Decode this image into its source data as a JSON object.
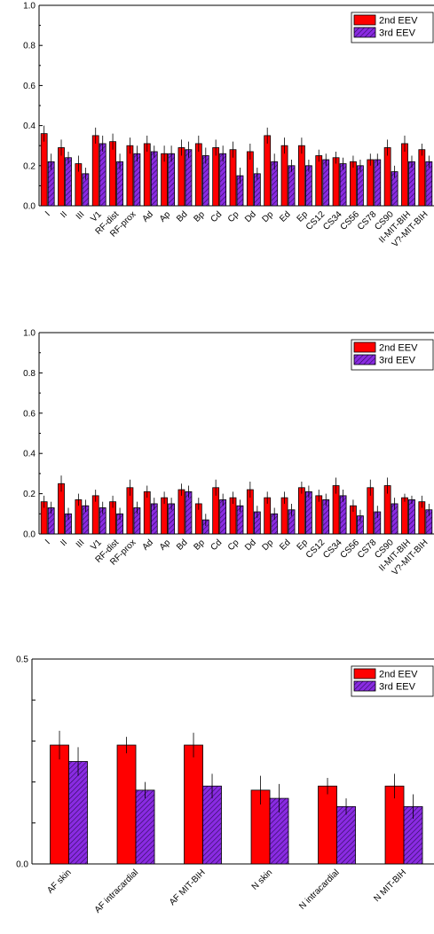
{
  "chart_data": [
    {
      "type": "bar",
      "ylim": [
        0,
        1.0
      ],
      "yticks": [
        "0.0",
        "0.2",
        "0.4",
        "0.6",
        "0.8",
        "1.0"
      ],
      "legend": {
        "position": "top-right"
      },
      "categories": [
        "I",
        "II",
        "III",
        "V1",
        "RF-dist",
        "RF-prox",
        "Ad",
        "Ap",
        "Bd",
        "Bp",
        "Cd",
        "Cp",
        "Dd",
        "Dp",
        "Ed",
        "Ep",
        "CS12",
        "CS34",
        "CS56",
        "CS78",
        "CS90",
        "II-MIT-BIH",
        "V?-MIT-BIH"
      ],
      "series": [
        {
          "name": "2nd EEV",
          "color": "#ff0000",
          "values": [
            0.36,
            0.29,
            0.21,
            0.35,
            0.32,
            0.3,
            0.31,
            0.26,
            0.29,
            0.31,
            0.29,
            0.28,
            0.27,
            0.35,
            0.3,
            0.3,
            0.25,
            0.24,
            0.22,
            0.23,
            0.29,
            0.31,
            0.28
          ],
          "errors": [
            0.04,
            0.04,
            0.04,
            0.04,
            0.04,
            0.04,
            0.04,
            0.04,
            0.04,
            0.04,
            0.04,
            0.04,
            0.04,
            0.04,
            0.04,
            0.04,
            0.03,
            0.03,
            0.03,
            0.03,
            0.04,
            0.04,
            0.03
          ]
        },
        {
          "name": "3rd EEV",
          "color": "#8a2be2",
          "values": [
            0.22,
            0.24,
            0.16,
            0.31,
            0.22,
            0.26,
            0.27,
            0.26,
            0.28,
            0.25,
            0.26,
            0.15,
            0.16,
            0.22,
            0.2,
            0.2,
            0.23,
            0.21,
            0.2,
            0.23,
            0.17,
            0.22,
            0.22
          ],
          "errors": [
            0.04,
            0.03,
            0.03,
            0.04,
            0.04,
            0.04,
            0.03,
            0.04,
            0.04,
            0.04,
            0.04,
            0.04,
            0.03,
            0.04,
            0.03,
            0.03,
            0.03,
            0.03,
            0.03,
            0.03,
            0.03,
            0.03,
            0.03
          ]
        }
      ]
    },
    {
      "type": "bar",
      "ylim": [
        0,
        1.0
      ],
      "yticks": [
        "0.0",
        "0.2",
        "0.4",
        "0.6",
        "0.8",
        "1.0"
      ],
      "legend": {
        "position": "top-right"
      },
      "categories": [
        "I",
        "II",
        "III",
        "V1",
        "RF-dist",
        "RF-prox",
        "Ad",
        "Ap",
        "Bd",
        "Bp",
        "Cd",
        "Cp",
        "Dd",
        "Dp",
        "Ed",
        "Ep",
        "CS12",
        "CS34",
        "CS56",
        "CS78",
        "CS90",
        "II-MIT-BIH",
        "V?-MIT-BIH"
      ],
      "series": [
        {
          "name": "2nd EEV",
          "color": "#ff0000",
          "values": [
            0.16,
            0.25,
            0.17,
            0.19,
            0.16,
            0.23,
            0.21,
            0.18,
            0.22,
            0.15,
            0.23,
            0.18,
            0.22,
            0.18,
            0.18,
            0.23,
            0.19,
            0.24,
            0.14,
            0.23,
            0.24,
            0.18,
            0.16
          ],
          "errors": [
            0.03,
            0.04,
            0.03,
            0.03,
            0.03,
            0.04,
            0.03,
            0.03,
            0.03,
            0.03,
            0.04,
            0.03,
            0.04,
            0.03,
            0.03,
            0.03,
            0.03,
            0.04,
            0.03,
            0.04,
            0.04,
            0.02,
            0.03
          ]
        },
        {
          "name": "3rd EEV",
          "color": "#8a2be2",
          "values": [
            0.13,
            0.1,
            0.14,
            0.13,
            0.1,
            0.13,
            0.15,
            0.15,
            0.21,
            0.07,
            0.17,
            0.14,
            0.11,
            0.1,
            0.12,
            0.21,
            0.17,
            0.19,
            0.09,
            0.11,
            0.15,
            0.17,
            0.12
          ],
          "errors": [
            0.03,
            0.03,
            0.03,
            0.03,
            0.03,
            0.03,
            0.03,
            0.03,
            0.03,
            0.03,
            0.03,
            0.03,
            0.03,
            0.03,
            0.03,
            0.03,
            0.03,
            0.03,
            0.03,
            0.03,
            0.03,
            0.02,
            0.03
          ]
        }
      ]
    },
    {
      "type": "bar",
      "ylim": [
        0,
        0.5
      ],
      "yticks": [
        "0.0",
        "",
        "",
        "",
        "",
        "0.5"
      ],
      "legend": {
        "position": "top-right"
      },
      "categories": [
        "AF skin",
        "AF intracardial",
        "AF MIT-BIH",
        "N skin",
        "N intracardial",
        "N MIT-BIH"
      ],
      "series": [
        {
          "name": "2nd EEV",
          "color": "#ff0000",
          "values": [
            0.29,
            0.29,
            0.29,
            0.18,
            0.19,
            0.19
          ],
          "errors": [
            0.035,
            0.02,
            0.03,
            0.035,
            0.02,
            0.03
          ]
        },
        {
          "name": "3rd EEV",
          "color": "#8a2be2",
          "values": [
            0.25,
            0.18,
            0.19,
            0.16,
            0.14,
            0.14
          ],
          "errors": [
            0.035,
            0.02,
            0.03,
            0.035,
            0.02,
            0.03
          ]
        }
      ]
    }
  ]
}
